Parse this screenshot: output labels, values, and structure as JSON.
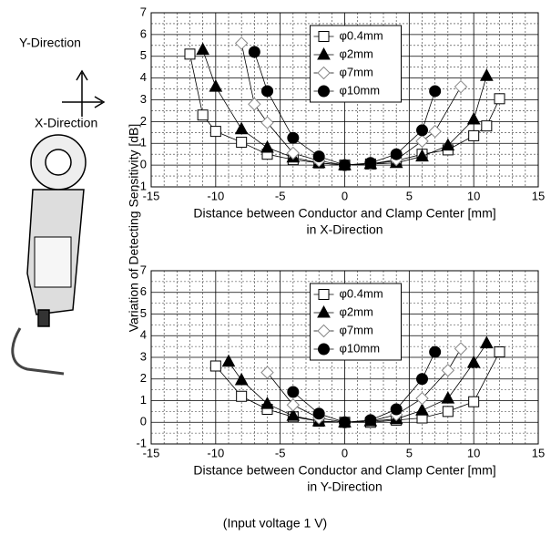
{
  "labels": {
    "y_direction": "Y-Direction",
    "x_direction": "X-Direction",
    "y_axis": "Variation of Detecting Sensitivity [dB]",
    "note": "(Input voltage 1 V)"
  },
  "chart_data": [
    {
      "type": "line",
      "x_label": [
        "Distance between Conductor and Clamp Center [mm]",
        "in X-Direction"
      ],
      "xlim": [
        -15,
        15
      ],
      "xticks": [
        -15,
        -10,
        -5,
        0,
        5,
        10,
        15
      ],
      "ylim": [
        -1,
        7
      ],
      "yticks": [
        -1,
        0,
        1,
        2,
        3,
        4,
        5,
        6,
        7
      ],
      "grid": true,
      "legend": "upper-center",
      "series": [
        {
          "name": "φ0.4mm",
          "marker": "square",
          "color": "#000000",
          "fill": "#ffffff",
          "x": [
            -12,
            -11,
            -10,
            -8,
            -6,
            -4,
            -2,
            0,
            2,
            4,
            6,
            8,
            10,
            11,
            12
          ],
          "values": [
            5.1,
            2.3,
            1.55,
            1.05,
            0.5,
            0.25,
            0.1,
            0,
            0.05,
            0.2,
            0.5,
            0.7,
            1.35,
            1.8,
            3.05
          ]
        },
        {
          "name": "φ2mm",
          "marker": "triangle",
          "color": "#000000",
          "fill": "#000000",
          "x": [
            -11,
            -10,
            -8,
            -6,
            -4,
            -2,
            0,
            2,
            4,
            6,
            8,
            10,
            11
          ],
          "values": [
            5.3,
            3.6,
            1.65,
            0.8,
            0.35,
            0.1,
            0,
            0.05,
            0.1,
            0.4,
            0.9,
            2.1,
            4.1
          ]
        },
        {
          "name": "φ7mm",
          "marker": "diamond",
          "color": "#888888",
          "fill": "#ffffff",
          "x": [
            -8,
            -7,
            -6,
            -4,
            -2,
            0,
            2,
            4,
            6,
            7,
            9
          ],
          "values": [
            5.6,
            2.8,
            1.95,
            0.55,
            0.2,
            0,
            0.05,
            0.25,
            1.1,
            1.55,
            3.6
          ]
        },
        {
          "name": "φ10mm",
          "marker": "circle",
          "color": "#000000",
          "fill": "#000000",
          "x": [
            -7,
            -6,
            -4,
            -2,
            0,
            2,
            4,
            6,
            7
          ],
          "values": [
            5.2,
            3.4,
            1.25,
            0.4,
            0,
            0.1,
            0.5,
            1.6,
            3.4
          ]
        }
      ]
    },
    {
      "type": "line",
      "x_label": [
        "Distance between Conductor and Clamp Center [mm]",
        "in Y-Direction"
      ],
      "xlim": [
        -15,
        15
      ],
      "xticks": [
        -15,
        -10,
        -5,
        0,
        5,
        10,
        15
      ],
      "ylim": [
        -1,
        7
      ],
      "yticks": [
        -1,
        0,
        1,
        2,
        3,
        4,
        5,
        6,
        7
      ],
      "grid": true,
      "legend": "upper-center",
      "series": [
        {
          "name": "φ0.4mm",
          "marker": "square",
          "color": "#000000",
          "fill": "#ffffff",
          "x": [
            -10,
            -8,
            -6,
            -4,
            -2,
            0,
            2,
            4,
            6,
            8,
            10,
            12
          ],
          "values": [
            2.6,
            1.2,
            0.6,
            0.25,
            0.05,
            0,
            0,
            0.1,
            0.2,
            0.5,
            0.95,
            3.25
          ]
        },
        {
          "name": "φ2mm",
          "marker": "triangle",
          "color": "#000000",
          "fill": "#000000",
          "x": [
            -9,
            -8,
            -6,
            -4,
            -2,
            0,
            2,
            4,
            6,
            8,
            10,
            11
          ],
          "values": [
            2.8,
            1.95,
            0.85,
            0.3,
            0.05,
            0,
            0.05,
            0.15,
            0.55,
            1.1,
            2.75,
            3.65
          ]
        },
        {
          "name": "φ7mm",
          "marker": "diamond",
          "color": "#888888",
          "fill": "#ffffff",
          "x": [
            -6,
            -4,
            -2,
            0,
            2,
            4,
            6,
            8,
            9
          ],
          "values": [
            2.3,
            0.8,
            0.2,
            0,
            0.05,
            0.35,
            1.1,
            2.4,
            3.4
          ]
        },
        {
          "name": "φ10mm",
          "marker": "circle",
          "color": "#000000",
          "fill": "#000000",
          "x": [
            -4,
            -2,
            0,
            2,
            4,
            6,
            7
          ],
          "values": [
            1.4,
            0.4,
            0,
            0.1,
            0.6,
            2.0,
            3.25
          ]
        }
      ]
    }
  ]
}
